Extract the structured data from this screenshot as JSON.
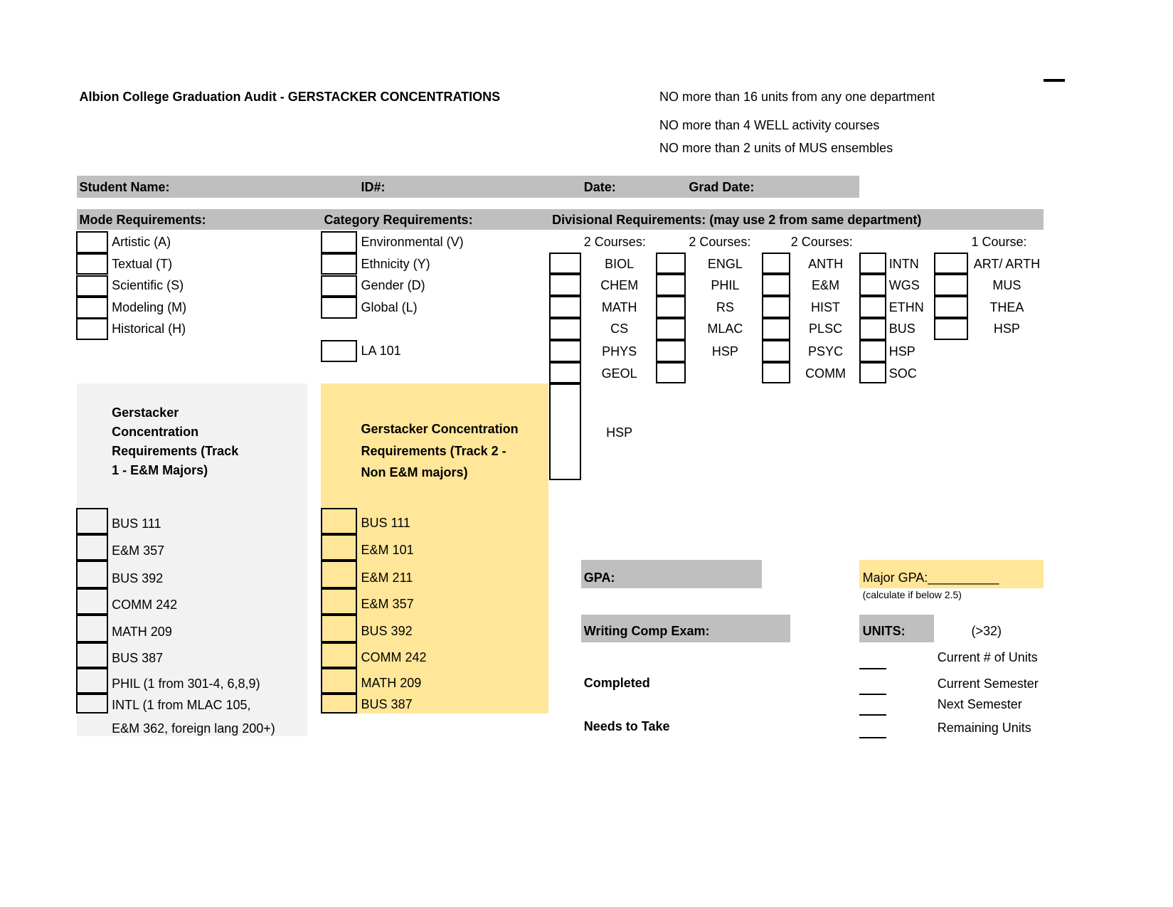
{
  "header": {
    "title": "Albion College Graduation Audit - GERSTACKER CONCENTRATIONS",
    "rules": [
      "NO more than 16 units from any one department",
      "NO more than 4 WELL activity courses",
      "NO more than 2 units of MUS ensembles"
    ]
  },
  "info_bar": [
    "Student Name:",
    "ID#:",
    "Date:",
    "Grad Date:"
  ],
  "mode": {
    "heading": "Mode Requirements:",
    "items": [
      "Artistic (A)",
      "Textual (T)",
      "Scientific (S)",
      "Modeling (M)",
      "Historical (H)"
    ]
  },
  "category": {
    "heading": "Category Requirements:",
    "items": [
      "Environmental (V)",
      "Ethnicity (Y)",
      "Gender (D)",
      "Global (L)",
      "LA 101"
    ]
  },
  "divisional": {
    "heading": "Divisional Requirements: (may use 2 from same department)",
    "columns": [
      {
        "header": "2 Courses:",
        "items": [
          "BIOL",
          "CHEM",
          "MATH",
          "CS",
          "PHYS",
          "GEOL",
          "HSP"
        ]
      },
      {
        "header": "2 Courses:",
        "items": [
          "ENGL",
          "PHIL",
          "RS",
          "MLAC",
          "HSP"
        ]
      },
      {
        "header": "2 Courses:",
        "items": [
          "ANTH",
          "E&M",
          "HIST",
          "PLSC",
          "PSYC",
          "COMM"
        ]
      },
      {
        "items": [
          "INTN",
          "WGS",
          "ETHN",
          "BUS",
          "HSP",
          "SOC"
        ]
      },
      {
        "header": "1 Course:",
        "items": [
          "ART/ ARTH",
          "MUS",
          "THEA",
          "HSP"
        ]
      }
    ]
  },
  "track1": {
    "title": "Gerstacker\nConcentration\nRequirements (Track\n1 - E&M Majors)",
    "items": [
      "BUS 111",
      "E&M 357",
      "BUS 392",
      "COMM 242",
      "MATH 209",
      "BUS 387",
      "PHIL (1 from 301-4, 6,8,9)",
      "INTL (1 from MLAC 105,\nE&M 362, foreign lang 200+)"
    ]
  },
  "track2": {
    "title": "Gerstacker Concentration\nRequirements (Track 2 -\nNon E&M majors)",
    "items": [
      "BUS 111",
      "E&M 101",
      "E&M 211",
      "E&M 357",
      "BUS 392",
      "COMM 242",
      "MATH 209",
      "BUS 387"
    ]
  },
  "exams": {
    "gpa": "GPA:",
    "writing": "Writing Comp Exam:",
    "completed": "Completed",
    "needs": "Needs to Take"
  },
  "units": {
    "major_gpa": "Major GPA:__________",
    "major_gpa_note": "(calculate if below 2.5)",
    "label": "UNITS:",
    "minimum": "(>32)",
    "lines": [
      "Current # of Units",
      "Current Semester",
      "Next Semester",
      "Remaining Units"
    ]
  }
}
